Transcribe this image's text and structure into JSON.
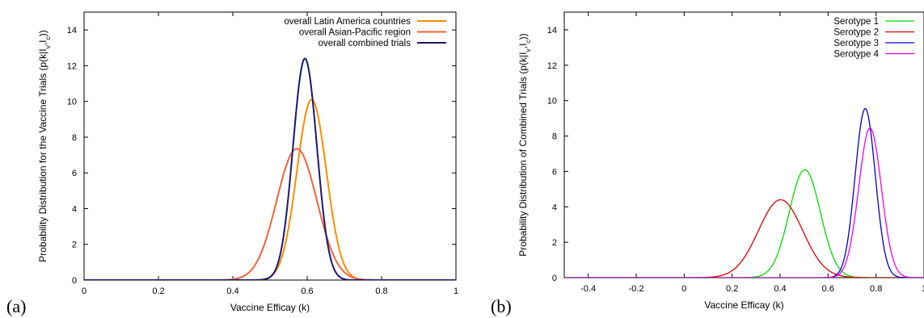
{
  "panels": {
    "a": {
      "label": "(a)"
    },
    "b": {
      "label": "(b)"
    }
  },
  "chart_data": [
    {
      "type": "line",
      "panel": "(a)",
      "xlabel": "Vaccine Efficay (k)",
      "ylabel": "Probability Distribution for the Vaccine Trials (p(k|I",
      "ylabel_sub": "v",
      "ylabel_mid": ",I",
      "ylabel_sub2": "c",
      "ylabel_end": "))",
      "xlim": [
        0,
        1
      ],
      "ylim": [
        0,
        15
      ],
      "xticks": [
        "0",
        "0.2",
        "0.4",
        "0.6",
        "0.8",
        "1"
      ],
      "xtick_values": [
        0,
        0.2,
        0.4,
        0.6,
        0.8,
        1
      ],
      "yticks": [
        "0",
        "2",
        "4",
        "6",
        "8",
        "10",
        "12",
        "14"
      ],
      "ytick_values": [
        0,
        2,
        4,
        6,
        8,
        10,
        12,
        14
      ],
      "grid": false,
      "legend_position": "top-right",
      "series": [
        {
          "name": "overall Latin America countries",
          "color": "#ff8c00",
          "mu": 0.612,
          "sigma": 0.0395,
          "peak": 10.1
        },
        {
          "name": "overall Asian-Pacific region",
          "color": "#f4623a",
          "mu": 0.572,
          "sigma": 0.054,
          "peak": 7.35
        },
        {
          "name": "overall combined trials",
          "color": "#191970",
          "mu": 0.594,
          "sigma": 0.032,
          "peak": 12.4
        }
      ]
    },
    {
      "type": "line",
      "panel": "(b)",
      "xlabel": "Vaccine Efficay (k)",
      "ylabel": "Probability Distribution of Combined Trials (p(k|I",
      "ylabel_sub": "v",
      "ylabel_mid": ",I",
      "ylabel_sub2": "c",
      "ylabel_end": "))",
      "xlim": [
        -0.5,
        1
      ],
      "ylim": [
        0,
        15
      ],
      "xticks": [
        "-0.4",
        "-0.2",
        "0",
        "0.2",
        "0.4",
        "0.6",
        "0.8",
        "1"
      ],
      "xtick_values": [
        -0.4,
        -0.2,
        0,
        0.2,
        0.4,
        0.6,
        0.8,
        1
      ],
      "yticks": [
        "0",
        "2",
        "4",
        "6",
        "8",
        "10",
        "12",
        "14"
      ],
      "ytick_values": [
        0,
        2,
        4,
        6,
        8,
        10,
        12,
        14
      ],
      "grid": false,
      "legend_position": "top-right",
      "series": [
        {
          "name": "Serotype 1",
          "color": "#00dd00",
          "mu": 0.503,
          "sigma": 0.065,
          "peak": 6.1
        },
        {
          "name": "Serotype 2",
          "color": "#dd0000",
          "mu": 0.402,
          "sigma": 0.092,
          "peak": 4.4
        },
        {
          "name": "Serotype 3",
          "color": "#0000cc",
          "mu": 0.755,
          "sigma": 0.042,
          "peak": 9.55
        },
        {
          "name": "Serotype 4",
          "color": "#ee00ee",
          "mu": 0.775,
          "sigma": 0.047,
          "peak": 8.45
        }
      ]
    }
  ]
}
